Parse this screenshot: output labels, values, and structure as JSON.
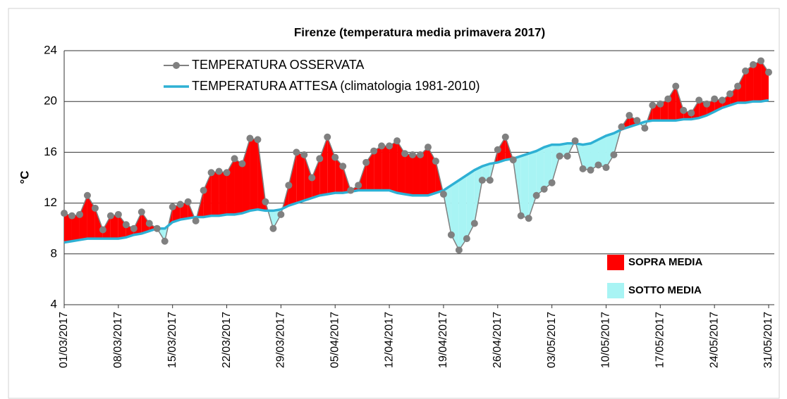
{
  "chart_data": {
    "type": "line",
    "title": "Firenze (temperatura media primavera 2017)",
    "y_label": "°C",
    "categories": [
      "01/03/2017",
      null,
      null,
      null,
      null,
      null,
      null,
      "08/03/2017",
      null,
      null,
      null,
      null,
      null,
      null,
      "15/03/2017",
      null,
      null,
      null,
      null,
      null,
      null,
      "22/03/2017",
      null,
      null,
      null,
      null,
      null,
      null,
      "29/03/2017",
      null,
      null,
      null,
      null,
      null,
      null,
      "05/04/2017",
      null,
      null,
      null,
      null,
      null,
      null,
      "12/04/2017",
      null,
      null,
      null,
      null,
      null,
      null,
      "19/04/2017",
      null,
      null,
      null,
      null,
      null,
      null,
      "26/04/2017",
      null,
      null,
      null,
      null,
      null,
      null,
      "03/05/2017",
      null,
      null,
      null,
      null,
      null,
      null,
      "10/05/2017",
      null,
      null,
      null,
      null,
      null,
      null,
      "17/05/2017",
      null,
      null,
      null,
      null,
      null,
      null,
      "24/05/2017",
      null,
      null,
      null,
      null,
      null,
      null,
      "31/05/2017"
    ],
    "series": [
      {
        "name": "TEMPERATURA OSSERVATA",
        "color": "#808080",
        "values": [
          11.2,
          11.0,
          11.1,
          12.6,
          11.6,
          9.9,
          11.0,
          11.1,
          10.3,
          10.0,
          11.3,
          10.4,
          10.0,
          9.0,
          11.7,
          11.9,
          12.1,
          10.6,
          13.0,
          14.4,
          14.5,
          14.4,
          15.5,
          15.1,
          17.1,
          17.0,
          12.1,
          10.0,
          11.1,
          13.4,
          16.0,
          15.8,
          14.0,
          15.5,
          17.2,
          15.6,
          14.9,
          13.0,
          13.4,
          15.2,
          16.1,
          16.5,
          16.5,
          16.9,
          15.9,
          15.8,
          15.8,
          16.4,
          15.3,
          12.7,
          9.5,
          8.3,
          9.2,
          10.4,
          13.8,
          13.8,
          16.2,
          17.2,
          15.4,
          11.0,
          10.8,
          12.6,
          13.1,
          13.6,
          15.7,
          15.7,
          16.9,
          14.7,
          14.6,
          15.0,
          14.8,
          15.8,
          18.0,
          18.9,
          18.5,
          17.9,
          19.7,
          19.8,
          20.2,
          21.2,
          19.3,
          19.1,
          20.1,
          19.8,
          20.2,
          20.1,
          20.6,
          21.2,
          22.4,
          22.9,
          23.2,
          22.3
        ]
      },
      {
        "name": "TEMPERATURA ATTESA (climatologia 1981-2010)",
        "color": "#2eb0d4",
        "values": [
          8.9,
          9.0,
          9.1,
          9.2,
          9.2,
          9.2,
          9.2,
          9.2,
          9.3,
          9.5,
          9.6,
          9.8,
          10.0,
          10.0,
          10.5,
          10.7,
          10.8,
          10.9,
          10.9,
          11.0,
          11.0,
          11.1,
          11.1,
          11.2,
          11.4,
          11.5,
          11.4,
          11.4,
          11.5,
          11.8,
          12.0,
          12.2,
          12.4,
          12.6,
          12.7,
          12.8,
          12.8,
          12.9,
          13.0,
          13.0,
          13.0,
          13.0,
          13.0,
          12.8,
          12.7,
          12.6,
          12.6,
          12.6,
          12.8,
          13.0,
          13.4,
          13.8,
          14.2,
          14.6,
          14.9,
          15.1,
          15.2,
          15.4,
          15.5,
          15.7,
          15.9,
          16.1,
          16.4,
          16.6,
          16.6,
          16.7,
          16.7,
          16.6,
          16.7,
          17.0,
          17.3,
          17.5,
          17.8,
          18.0,
          18.2,
          18.4,
          18.5,
          18.5,
          18.5,
          18.5,
          18.6,
          18.6,
          18.7,
          18.9,
          19.2,
          19.5,
          19.7,
          19.9,
          19.9,
          20.0,
          20.0,
          20.1
        ]
      }
    ],
    "fill_legend": [
      {
        "name": "SOPRA MEDIA",
        "color": "#ff0000"
      },
      {
        "name": "SOTTO MEDIA",
        "color": "#a8f4f4"
      }
    ],
    "ylim": [
      4,
      24
    ],
    "yticks": [
      4,
      8,
      12,
      16,
      20,
      24
    ],
    "grid": true
  }
}
